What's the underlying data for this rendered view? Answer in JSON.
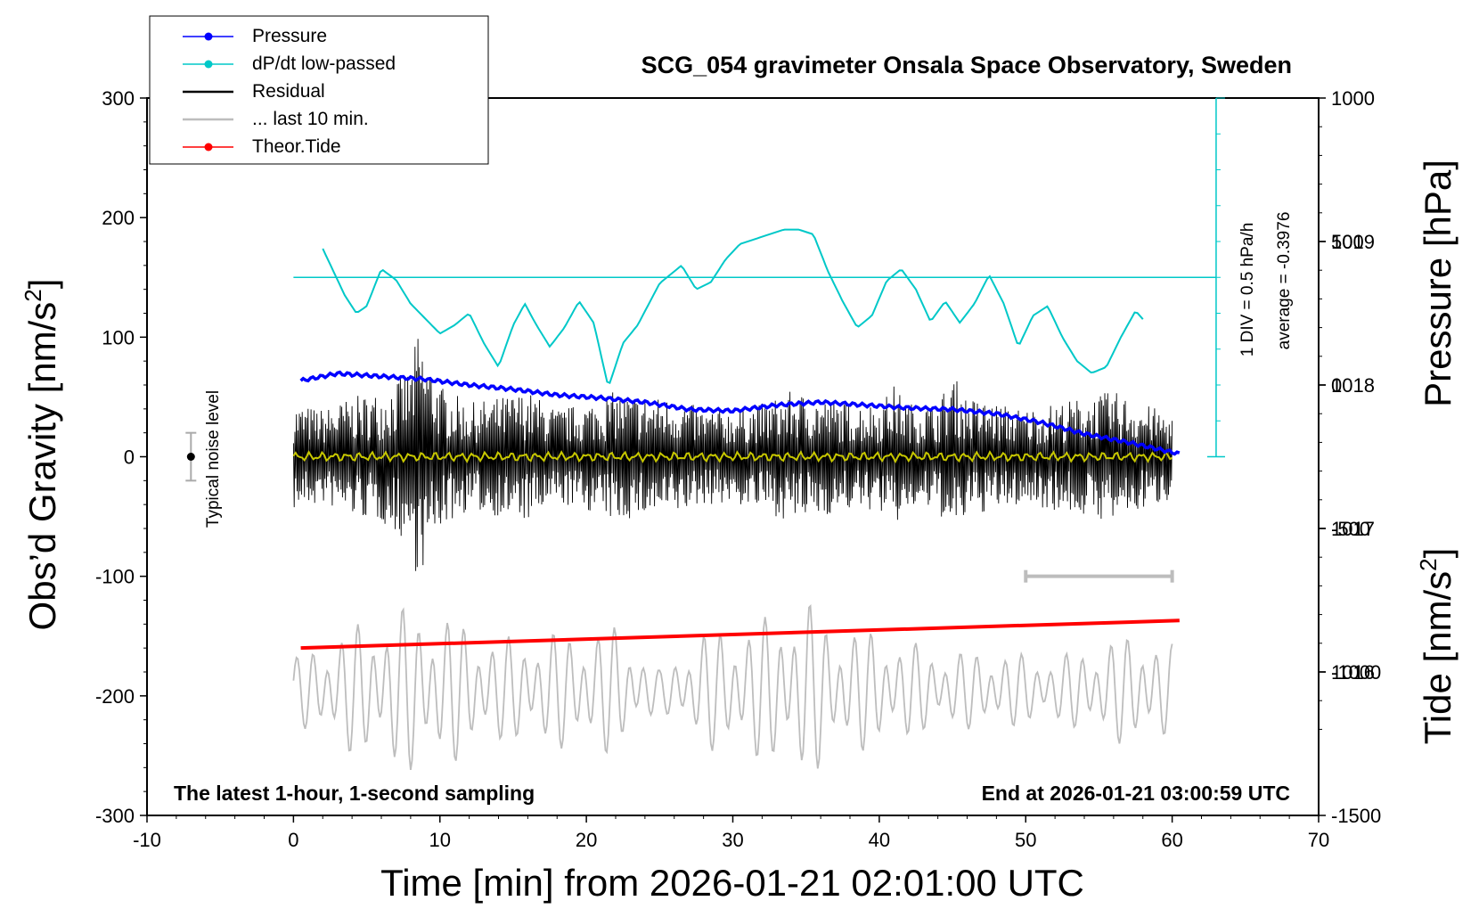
{
  "chart_data": {
    "type": "line",
    "title": "SCG_054 gravimeter Onsala Space Observatory, Sweden",
    "xlabel": "Time [min] from 2026-01-21 02:01:00 UTC",
    "ylabel_left": "Obs’d Gravity [nm/s",
    "ylabel_left_sup": "2",
    "ylabel_left_end": "]",
    "ylabel_right_top": "Pressure [hPa]",
    "ylabel_right_bottom": "Tide [nm/s",
    "ylabel_right_bottom_sup": "2",
    "ylabel_right_bottom_end": "]",
    "xlim": [
      -10,
      70
    ],
    "ylim": [
      -300,
      300
    ],
    "x_ticks": [
      "-10",
      "0",
      "10",
      "20",
      "30",
      "40",
      "50",
      "60",
      "70"
    ],
    "x_tick_values": [
      -10,
      0,
      10,
      20,
      30,
      40,
      50,
      60,
      70
    ],
    "y_ticks": [
      "300",
      "200",
      "100",
      "0",
      "-100",
      "-200",
      "-300"
    ],
    "y_tick_values": [
      300,
      200,
      100,
      0,
      -100,
      -200,
      -300
    ],
    "pressure_ticks": [
      "1019",
      "1018",
      "1017",
      "1016"
    ],
    "pressure_tick_values": [
      1019,
      1018,
      1017,
      1016
    ],
    "pressure_range": [
      1015.0,
      1020.0
    ],
    "tide_ticks": [
      "1000",
      "500",
      "0",
      "-500",
      "-1000",
      "-1500"
    ],
    "tide_tick_values": [
      1000,
      500,
      0,
      -500,
      -1000,
      -1500
    ],
    "tide_range": [
      -1500,
      1000
    ],
    "footer_left": "The latest 1-hour, 1-second sampling",
    "footer_right": "End at 2026-01-21 03:00:59 UTC",
    "noise_label": "Typical noise level",
    "noise_level": 20,
    "dpdt_scale_label": "1 DIV = 0.5 hPa/h",
    "dpdt_average_label": "average = -0.3976",
    "dpdt_zero_gravity_equiv": 150,
    "legend": [
      {
        "label": "Pressure",
        "color": "#0000ff",
        "marker": true
      },
      {
        "label": "dP/dt low-passed",
        "color": "#00c8c8",
        "marker": true
      },
      {
        "label": "Residual",
        "color": "#000000",
        "marker": false
      },
      {
        "label": "... last 10 min.",
        "color": "#bdbdbd",
        "marker": false
      },
      {
        "label": "Theor.Tide",
        "color": "#ff0000",
        "marker": true
      }
    ],
    "last10_range": [
      50,
      60
    ],
    "series": [
      {
        "name": "Pressure",
        "color": "#0000ff",
        "axis": "pressure",
        "x": [
          0.5,
          3,
          6,
          9,
          12,
          15,
          18,
          21,
          24,
          27,
          30,
          33,
          36,
          39,
          42,
          45,
          48,
          51,
          54,
          57,
          60.5
        ],
        "values": [
          1018.03,
          1018.08,
          1018.06,
          1018.04,
          1018.0,
          1017.97,
          1017.93,
          1017.91,
          1017.88,
          1017.83,
          1017.82,
          1017.86,
          1017.88,
          1017.86,
          1017.84,
          1017.83,
          1017.8,
          1017.74,
          1017.66,
          1017.6,
          1017.52
        ]
      },
      {
        "name": "dP/dt low-passed",
        "color": "#00c8c8",
        "axis": "gravity",
        "x": [
          2,
          3.5,
          4.3,
          5,
          6,
          7,
          8,
          10,
          11,
          12,
          13,
          14,
          15,
          15.8,
          16.5,
          17.5,
          18.5,
          19.5,
          20.5,
          21.5,
          22.5,
          23.5,
          25,
          26.5,
          27.5,
          28.5,
          29.5,
          30.5,
          31.5,
          32.5,
          33.5,
          34.5,
          35.5,
          36.5,
          37.5,
          38.5,
          39.5,
          40.5,
          41.5,
          42.5,
          43.5,
          44.5,
          45.5,
          46.5,
          47.5,
          48.5,
          49.5,
          50.5,
          51.5,
          52.5,
          53.5,
          54.5,
          55.5,
          56.5,
          57.5,
          58
        ],
        "values": [
          174,
          135,
          120,
          126,
          157,
          148,
          128,
          103,
          110,
          120,
          95,
          75,
          110,
          128,
          112,
          92,
          108,
          130,
          112,
          58,
          95,
          110,
          145,
          160,
          140,
          146,
          165,
          178,
          182,
          186,
          190,
          190,
          186,
          155,
          130,
          108,
          118,
          147,
          157,
          140,
          113,
          130,
          112,
          128,
          152,
          128,
          92,
          118,
          126,
          100,
          80,
          70,
          75,
          100,
          122,
          115
        ]
      },
      {
        "name": "Residual",
        "color": "#000000",
        "axis": "gravity",
        "x_range": [
          0,
          60
        ],
        "points": 1200,
        "envelope_x": [
          0,
          2,
          4,
          6,
          8,
          8.5,
          9,
          10,
          12,
          14,
          16,
          18,
          20,
          22,
          24,
          26,
          28,
          30,
          32,
          34,
          36,
          38,
          40,
          41,
          42,
          44,
          45,
          46,
          48,
          50,
          52,
          54,
          56,
          58,
          60
        ],
        "envelope_amp": [
          45,
          40,
          50,
          55,
          75,
          105,
          90,
          60,
          45,
          50,
          55,
          40,
          45,
          55,
          50,
          50,
          40,
          40,
          45,
          55,
          50,
          45,
          45,
          60,
          45,
          45,
          70,
          50,
          45,
          40,
          45,
          50,
          55,
          45,
          35
        ]
      },
      {
        "name": "Filtered residual",
        "color": "#c8c800",
        "axis": "gravity",
        "x_range": [
          0,
          60
        ],
        "amplitude": 4
      },
      {
        "name": "... last 10 min.",
        "color": "#bdbdbd",
        "axis": "gravity",
        "x_range": [
          0,
          60
        ],
        "center": -195,
        "points": 600,
        "envelope_x": [
          0,
          4,
          8,
          10,
          14,
          18,
          22,
          25,
          28,
          32,
          35,
          37,
          40,
          44,
          48,
          52,
          56,
          58,
          60
        ],
        "envelope_amp": [
          25,
          50,
          65,
          60,
          40,
          45,
          50,
          15,
          45,
          55,
          70,
          50,
          45,
          30,
          30,
          25,
          40,
          45,
          35
        ]
      },
      {
        "name": "Theor.Tide",
        "color": "#ff0000",
        "axis": "gravity",
        "x": [
          0.5,
          60.5
        ],
        "values": [
          -160,
          -137
        ]
      }
    ]
  }
}
